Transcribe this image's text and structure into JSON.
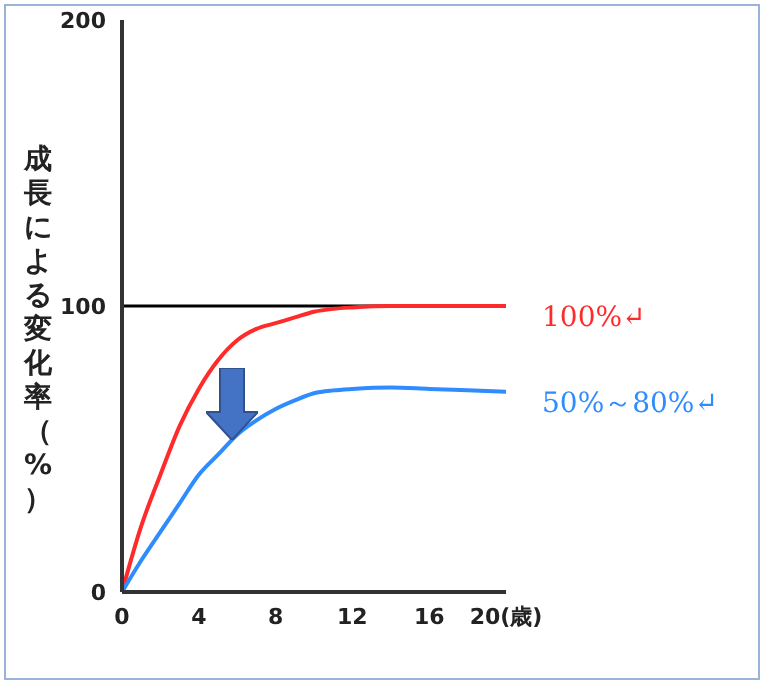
{
  "chart_data": {
    "type": "line",
    "ylabel": "成長による変化率（%）",
    "x": [
      0,
      1,
      2,
      3,
      4,
      5,
      6,
      7,
      8,
      9,
      10,
      11,
      12,
      14,
      16,
      18,
      20
    ],
    "series": [
      {
        "name": "100%↵",
        "color": "#ff2a2a",
        "values": [
          0,
          23,
          41,
          58,
          71,
          81,
          88,
          92,
          94,
          96,
          98,
          99,
          99.5,
          100,
          100,
          100,
          100
        ]
      },
      {
        "name": "50%～80%↵",
        "color": "#2f8cff",
        "values": [
          0,
          11,
          21,
          31,
          41,
          48,
          55,
          60,
          64,
          67,
          69.5,
          70.5,
          71,
          71.5,
          71,
          70.5,
          70
        ]
      }
    ],
    "xlim": [
      0,
      20
    ],
    "xticks": [
      0,
      4,
      8,
      12,
      16,
      {
        "value": 20,
        "label": "20(歳)"
      }
    ],
    "ylim": [
      0,
      200
    ],
    "yticks": [
      0,
      100,
      200
    ],
    "ref_lines": [
      {
        "axis": "y",
        "value": 100,
        "color": "#000000"
      }
    ],
    "marker": "none",
    "line_style": "solid"
  }
}
